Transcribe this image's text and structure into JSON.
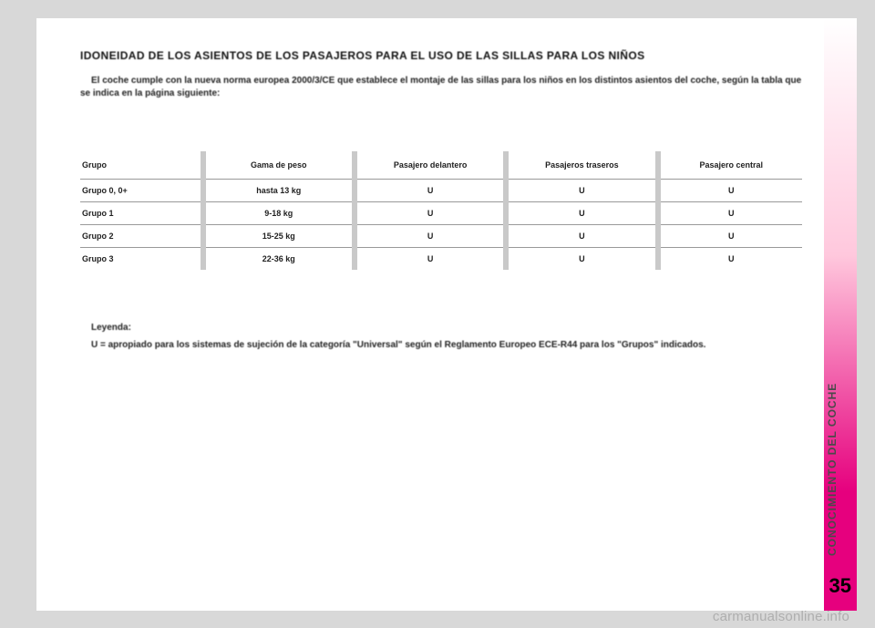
{
  "side": {
    "label": "CONOCIMIENTO DEL COCHE",
    "gradient_start": "#ffffff",
    "gradient_mid": "#ffc8dd",
    "gradient_end": "#e6007e",
    "text_color": "#4a4a4a"
  },
  "page_number": "35",
  "title": "IDONEIDAD DE LOS ASIENTOS DE LOS PASAJEROS PARA EL USO DE LAS SILLAS PARA LOS NIÑOS",
  "intro": "El coche cumple con la nueva norma europea 2000/3/CE que establece el montaje de las sillas para los niños en los distintos asientos del coche, según la tabla que se indica en la página siguiente:",
  "table": {
    "type": "table",
    "sep_color": "#c9c9c9",
    "border_color": "#999999",
    "columns": [
      {
        "key": "grupo",
        "label": "Grupo",
        "align": "left"
      },
      {
        "key": "peso",
        "label": "Gama de peso",
        "align": "center"
      },
      {
        "key": "del",
        "label": "Pasajero\ndelantero",
        "align": "center"
      },
      {
        "key": "tras",
        "label": "Pasajeros\ntraseros",
        "align": "center"
      },
      {
        "key": "cen",
        "label": "Pasajero\ncentral",
        "align": "center"
      }
    ],
    "rows": [
      {
        "grupo": "Grupo 0, 0+",
        "peso": "hasta 13 kg",
        "del": "U",
        "tras": "U",
        "cen": "U"
      },
      {
        "grupo": "Grupo 1",
        "peso": "9-18 kg",
        "del": "U",
        "tras": "U",
        "cen": "U"
      },
      {
        "grupo": "Grupo 2",
        "peso": "15-25 kg",
        "del": "U",
        "tras": "U",
        "cen": "U"
      },
      {
        "grupo": "Grupo 3",
        "peso": "22-36 kg",
        "del": "U",
        "tras": "U",
        "cen": "U"
      }
    ]
  },
  "legend": {
    "heading": "Leyenda:",
    "body": "U = apropiado para los sistemas de sujeción de la categoría \"Universal\" según el Reglamento Europeo ECE-R44 para los \"Grupos\" indicados."
  },
  "watermark": "carmanualsonline.info"
}
